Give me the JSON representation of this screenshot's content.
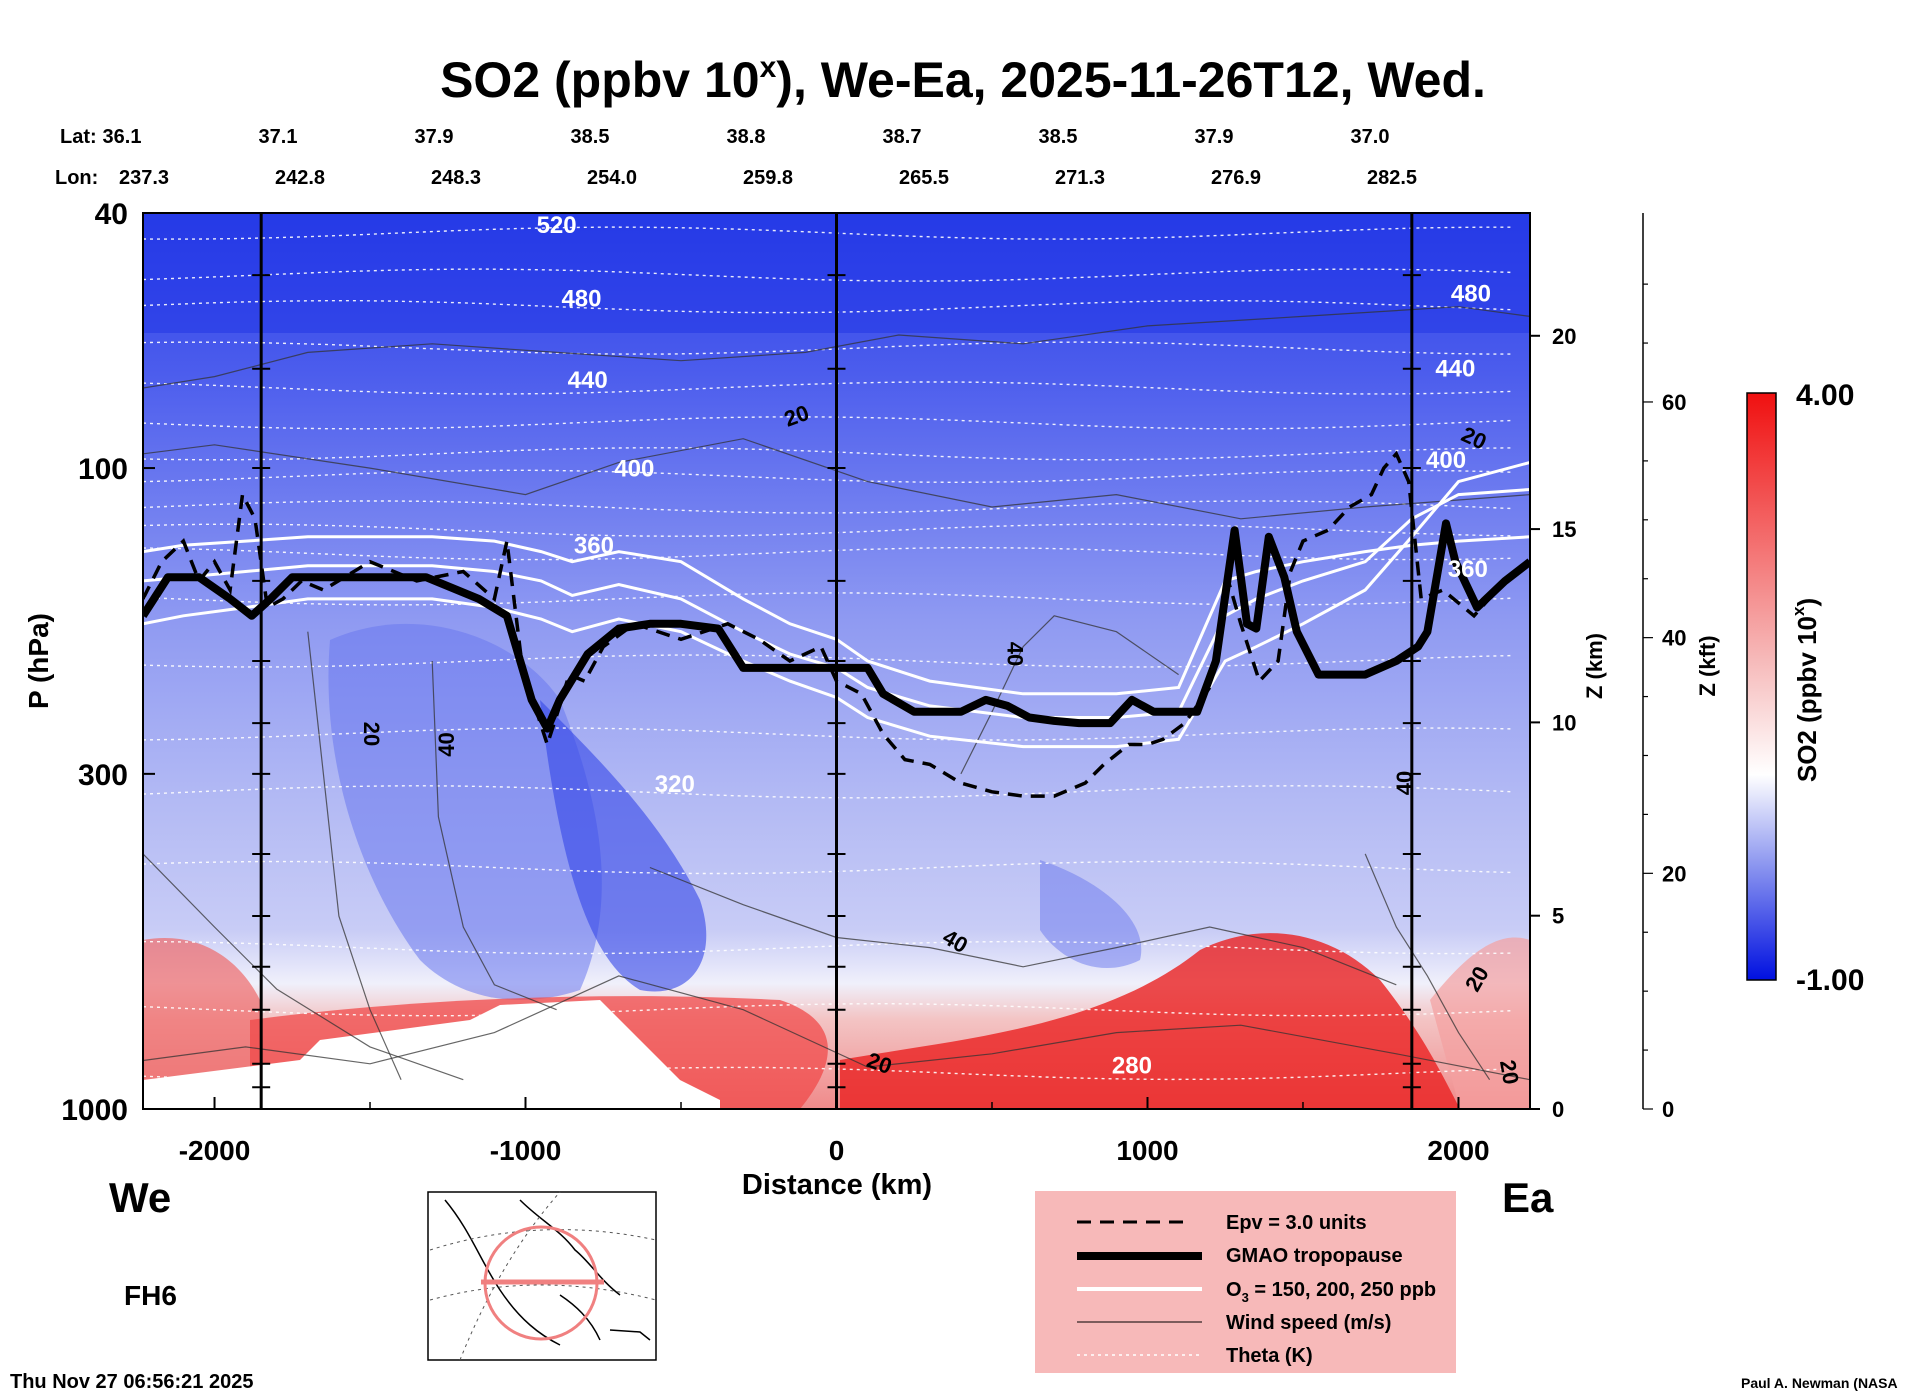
{
  "chart_data": {
    "type": "heatmap",
    "title": "SO2 (ppbv 10",
    "title_superscript": "x",
    "title_rest": "), We-Ea, 2025-11-26T12, Wed.",
    "xlabel": "Distance (km)",
    "ylabel": "P (hPa)",
    "xlim": [
      -2230,
      2230
    ],
    "ylim": [
      1000,
      40
    ],
    "x_ticks": [
      -2000,
      -1000,
      0,
      1000,
      2000
    ],
    "x_tick_labels": [
      "-2000",
      "-1000",
      "0",
      "1000",
      "2000"
    ],
    "y_ticks": [
      40,
      100,
      300,
      1000
    ],
    "y_tick_labels": [
      "40",
      "100",
      "300",
      "1000"
    ],
    "z_km_label": "Z (km)",
    "z_km_ticks": [
      0,
      5,
      10,
      15,
      20
    ],
    "z_km_tick_labels": [
      "0",
      "5",
      "10",
      "15",
      "20"
    ],
    "z_kft_label": "Z (kft)",
    "z_kft_ticks": [
      0,
      20,
      40,
      60
    ],
    "z_kft_tick_labels": [
      "0",
      "20",
      "40",
      "60"
    ],
    "lat_label": "Lat:",
    "lon_label": "Lon:",
    "section_columns": [
      {
        "x": -2000,
        "lat": "36.1",
        "lon": "237.3"
      },
      {
        "x": -1500,
        "lat": "37.1",
        "lon": "242.8"
      },
      {
        "x": -1000,
        "lat": "37.9",
        "lon": "248.3"
      },
      {
        "x": -500,
        "lat": "38.5",
        "lon": "254.0"
      },
      {
        "x": 0,
        "lat": "38.8",
        "lon": "259.8"
      },
      {
        "x": 500,
        "lat": "38.7",
        "lon": "265.5"
      },
      {
        "x": 1000,
        "lat": "38.5",
        "lon": "271.3"
      },
      {
        "x": 1500,
        "lat": "37.9",
        "lon": "276.9"
      },
      {
        "x": 2000,
        "lat": "37.0",
        "lon": "282.5"
      }
    ],
    "vertical_markers_km": [
      -1850,
      0,
      1850
    ],
    "theta_levels": [
      {
        "label": "520",
        "x": -900,
        "p": 43
      },
      {
        "label": "480",
        "x": -820,
        "p": 56
      },
      {
        "label": "440",
        "x": -800,
        "p": 75
      },
      {
        "label": "400",
        "x": -650,
        "p": 103
      },
      {
        "label": "360",
        "x": -780,
        "p": 136
      },
      {
        "label": "320",
        "x": -520,
        "p": 320
      },
      {
        "label": "280",
        "x": 950,
        "p": 880
      },
      {
        "label": "480",
        "x": 2040,
        "p": 55
      },
      {
        "label": "440",
        "x": 1990,
        "p": 72
      },
      {
        "label": "400",
        "x": 1960,
        "p": 100
      },
      {
        "label": "360",
        "x": 2030,
        "p": 148
      }
    ],
    "wind_labels": [
      {
        "label": "20",
        "x": -120,
        "p": 85,
        "angle": -20
      },
      {
        "label": "20",
        "x": 2040,
        "p": 92,
        "angle": 25
      },
      {
        "label": "40",
        "x": 550,
        "p": 195,
        "angle": 90
      },
      {
        "label": "20",
        "x": -1520,
        "p": 260,
        "angle": 90
      },
      {
        "label": "40",
        "x": -1230,
        "p": 270,
        "angle": -90
      },
      {
        "label": "40",
        "x": 370,
        "p": 560,
        "angle": 30
      },
      {
        "label": "40",
        "x": 1850,
        "p": 310,
        "angle": -90
      },
      {
        "label": "20",
        "x": 130,
        "p": 870,
        "angle": 20
      },
      {
        "label": "20",
        "x": 2080,
        "p": 635,
        "angle": -60
      },
      {
        "label": "20",
        "x": 2140,
        "p": 880,
        "angle": 80
      }
    ],
    "series": [
      {
        "name": "GMAO tropopause",
        "x": [
          -2230,
          -2150,
          -2050,
          -1950,
          -1880,
          -1820,
          -1750,
          -1650,
          -1500,
          -1320,
          -1150,
          -1060,
          -980,
          -930,
          -890,
          -800,
          -700,
          -600,
          -500,
          -380,
          -300,
          -200,
          -100,
          0,
          100,
          150,
          250,
          400,
          480,
          550,
          620,
          700,
          780,
          880,
          950,
          1020,
          1100,
          1160,
          1220,
          1280,
          1320,
          1350,
          1390,
          1440,
          1480,
          1550,
          1700,
          1800,
          1870,
          1900,
          1960,
          1990,
          2060,
          2150,
          2230
        ],
        "p": [
          170,
          148,
          148,
          160,
          170,
          160,
          148,
          148,
          148,
          148,
          160,
          170,
          230,
          255,
          230,
          195,
          178,
          175,
          175,
          178,
          205,
          205,
          205,
          205,
          205,
          225,
          240,
          240,
          230,
          235,
          245,
          248,
          250,
          250,
          230,
          240,
          240,
          240,
          200,
          125,
          175,
          178,
          128,
          148,
          180,
          210,
          210,
          200,
          190,
          180,
          122,
          140,
          165,
          150,
          140
        ]
      },
      {
        "name": "Epv = 3.0 units",
        "x": [
          -2230,
          -2170,
          -2100,
          -2050,
          -2000,
          -1950,
          -1910,
          -1870,
          -1830,
          -1780,
          -1720,
          -1650,
          -1500,
          -1350,
          -1200,
          -1100,
          -1060,
          -1010,
          -970,
          -930,
          -890,
          -860,
          -810,
          -750,
          -650,
          -500,
          -350,
          -250,
          -150,
          -50,
          0,
          80,
          150,
          220,
          300,
          400,
          500,
          600,
          700,
          800,
          860,
          940,
          1000,
          1050,
          1120,
          1200,
          1260,
          1300,
          1360,
          1420,
          1460,
          1500,
          1580,
          1650,
          1720,
          1760,
          1800,
          1840,
          1880,
          1950,
          2050,
          2150,
          2230
        ],
        "p": [
          160,
          140,
          130,
          150,
          140,
          155,
          110,
          120,
          165,
          160,
          150,
          155,
          140,
          150,
          145,
          160,
          130,
          205,
          235,
          270,
          235,
          210,
          215,
          190,
          175,
          185,
          175,
          185,
          200,
          190,
          215,
          225,
          260,
          285,
          290,
          310,
          320,
          325,
          325,
          310,
          290,
          270,
          270,
          265,
          250,
          220,
          150,
          175,
          215,
          200,
          145,
          130,
          125,
          115,
          110,
          100,
          95,
          105,
          160,
          155,
          170,
          150,
          140
        ]
      },
      {
        "name": "O3 = 150, 200, 250 ppb",
        "levels": [
          {
            "x": [
              -2230,
              -2100,
              -1900,
              -1700,
              -1500,
              -1300,
              -1100,
              -950,
              -850,
              -700,
              -500,
              -300,
              -150,
              0,
              100,
              300,
              600,
              900,
              1100,
              1250,
              1350,
              1500,
              1700,
              1850,
              2000,
              2230
            ],
            "p": [
              135,
              132,
              130,
              128,
              128,
              128,
              130,
              135,
              140,
              135,
              140,
              160,
              175,
              185,
              200,
              215,
              225,
              225,
              220,
              150,
              145,
              140,
              135,
              132,
              130,
              128
            ]
          },
          {
            "x": [
              -2230,
              -2100,
              -1900,
              -1700,
              -1500,
              -1300,
              -1100,
              -950,
              -850,
              -700,
              -500,
              -300,
              -150,
              0,
              100,
              300,
              600,
              900,
              1100,
              1250,
              1350,
              1500,
              1700,
              1850,
              2000,
              2230
            ],
            "p": [
              150,
              148,
              145,
              142,
              142,
              142,
              145,
              150,
              158,
              152,
              160,
              180,
              195,
              205,
              220,
              235,
              245,
              245,
              240,
              170,
              160,
              150,
              140,
              120,
              110,
              108
            ]
          },
          {
            "x": [
              -2230,
              -2100,
              -1900,
              -1700,
              -1500,
              -1300,
              -1100,
              -950,
              -850,
              -700,
              -500,
              -300,
              -150,
              0,
              100,
              300,
              600,
              900,
              1100,
              1250,
              1350,
              1500,
              1700,
              1850,
              2000,
              2230
            ],
            "p": [
              175,
              170,
              165,
              160,
              160,
              160,
              165,
              172,
              180,
              172,
              180,
              200,
              215,
              228,
              245,
              262,
              272,
              272,
              265,
              200,
              190,
              175,
              155,
              128,
              105,
              98
            ]
          }
        ]
      }
    ],
    "colorbar": {
      "label": "SO2 (ppbv 10",
      "label_superscript": "x",
      "label_rest": ")",
      "min_label": "-1.00",
      "max_label": "4.00",
      "min": -1.0,
      "max": 4.0
    },
    "legend": {
      "placement": "bottom-right",
      "entries": [
        {
          "style": "dashed",
          "label": "Epv = 3.0 units"
        },
        {
          "style": "thick",
          "label": "GMAO tropopause"
        },
        {
          "style": "white",
          "label": "O",
          "label_sub": "3",
          "label_rest": " = 150, 200, 250 ppb"
        },
        {
          "style": "thin",
          "label": "Wind speed (m/s)"
        },
        {
          "style": "dotted",
          "label": "Theta (K)"
        }
      ]
    },
    "west_label": "We",
    "east_label": "Ea",
    "forecast_hour": "FH6",
    "timestamp": "Thu Nov 27 06:56:21 2025",
    "credit": "Paul A. Newman (NASA",
    "colors": {
      "background": "#ffffff",
      "deep_blue": "#1a2ee6",
      "mid_blue": "#6f7ef0",
      "pale_blue": "#c4c9f6",
      "red": "#e81010",
      "pale_red": "#f6c6c6",
      "legend_bg": "#f7b9b9"
    }
  }
}
